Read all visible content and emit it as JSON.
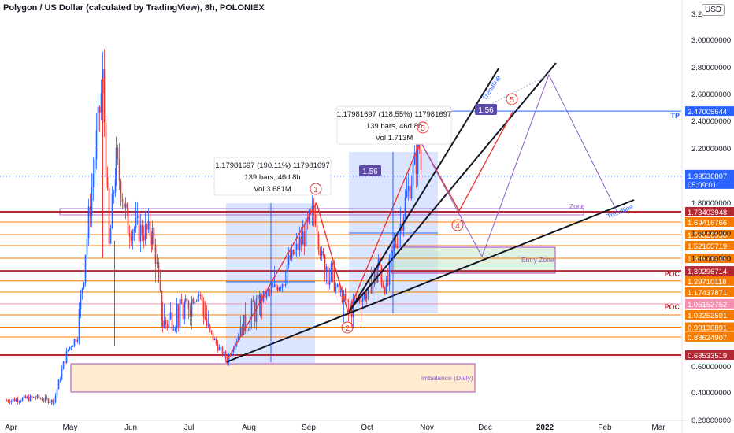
{
  "header": {
    "title": "Polygon / US Dollar (calculated by TradingView), 8h, POLONIEX",
    "currency_button": "USD"
  },
  "chart_data": {
    "type": "candlestick",
    "ylim": [
      0.3,
      3.25
    ],
    "y_ticks": [
      "3.2",
      "3.00000000",
      "2.80000000",
      "2.60000000",
      "2.40000000",
      "2.20000000",
      "2.00000000",
      "1.80000000",
      "1.60000000",
      "1.40000000",
      "0.60000000",
      "0.40000000",
      "0.20000000"
    ],
    "y_tick_values": [
      3.2,
      3.0,
      2.8,
      2.6,
      2.4,
      2.2,
      2.0,
      1.8,
      1.6,
      1.4,
      0.6,
      0.4,
      0.2
    ],
    "x_ticks": [
      "Apr",
      "May",
      "Jun",
      "Jul",
      "Aug",
      "Sep",
      "Oct",
      "Nov",
      "Dec",
      "2022",
      "Feb",
      "Mar"
    ],
    "price_path": [
      [
        "Apr",
        0.34
      ],
      [
        "Apr 15",
        0.36
      ],
      [
        "Apr 25",
        0.33
      ],
      [
        "May",
        0.75
      ],
      [
        "May 10",
        0.9
      ],
      [
        "May 18",
        2.7
      ],
      [
        "May 22",
        1.5
      ],
      [
        "May 28",
        2.1
      ],
      [
        "Jun 5",
        1.65
      ],
      [
        "Jun 15",
        1.6
      ],
      [
        "Jun 22",
        1.0
      ],
      [
        "Jun 30",
        1.05
      ],
      [
        "Jul 10",
        1.15
      ],
      [
        "Jul 20",
        0.75
      ],
      [
        "Jul 26",
        0.65
      ],
      [
        "Aug 5",
        0.95
      ],
      [
        "Aug 15",
        1.1
      ],
      [
        "Aug 25",
        1.3
      ],
      [
        "Sep 1",
        1.75
      ],
      [
        "Sep 6",
        1.4
      ],
      [
        "Sep 15",
        1.3
      ],
      [
        "Sep 22",
        1.05
      ],
      [
        "Oct 1",
        1.15
      ],
      [
        "Oct 10",
        1.35
      ],
      [
        "Oct 20",
        1.2
      ],
      [
        "Oct 25",
        1.5
      ],
      [
        "Oct 30",
        2.2
      ],
      [
        "Nov 1",
        1.99
      ]
    ],
    "levels": [
      {
        "label": "2.47005644",
        "value": 2.47005644,
        "color": "#2962ff",
        "tag": "TP"
      },
      {
        "label": "1.73403948",
        "value": 1.73403948,
        "color": "#b22833"
      },
      {
        "label": "1.69416766",
        "value": 1.69416766,
        "color": "#f57c00"
      },
      {
        "label": "1.58326936",
        "value": 1.58326936,
        "color": "#f57c00"
      },
      {
        "label": "1.52165719",
        "value": 1.52165719,
        "color": "#f57c00"
      },
      {
        "label": "1.39371249",
        "value": 1.39371249,
        "color": "#f57c00"
      },
      {
        "label": "1.30296714",
        "value": 1.30296714,
        "color": "#b22833",
        "tag": "POC"
      },
      {
        "label": "1.29710118",
        "value": 1.29710118,
        "color": "#f57c00"
      },
      {
        "label": "1.17437871",
        "value": 1.17437871,
        "color": "#f57c00"
      },
      {
        "label": "1.05152752",
        "value": 1.05152752,
        "color": "#f48fb1",
        "tag": "POC"
      },
      {
        "label": "1.03252501",
        "value": 1.03252501,
        "color": "#f57c00"
      },
      {
        "label": "0.99130891",
        "value": 0.99130891,
        "color": "#f57c00"
      },
      {
        "label": "0.88624907",
        "value": 0.88624907,
        "color": "#f57c00"
      },
      {
        "label": "0.68533519",
        "value": 0.68533519,
        "color": "#b22833"
      }
    ],
    "last_price": {
      "value": "1.99536807",
      "countdown": "05:09:01",
      "color": "#2962ff"
    },
    "measure_1": {
      "lines": [
        "1.17981697 (190.11%) 117981697",
        "139 bars, 46d 8h",
        "Vol 3.681M"
      ]
    },
    "measure_2": {
      "lines": [
        "1.17981697 (118.55%) 117981697",
        "139 bars, 46d 8h",
        "Vol 1.713M"
      ]
    },
    "ratio_labels": [
      "1.56",
      "1.56"
    ],
    "wave_labels": [
      "1",
      "2",
      "3",
      "4",
      "5"
    ],
    "text_annotations": {
      "trendline_1": "Trendline",
      "trendline_2": "Trendline",
      "zone": "Zone",
      "entry_zone": "Entry Zone",
      "imbalance": "imbalance (Daily)"
    },
    "colors": {
      "up": "#26a69a",
      "down": "#ef5350",
      "candle_body_up": "#2962ff",
      "candle_body_down": "#e53935",
      "axis_text": "#131722"
    }
  }
}
